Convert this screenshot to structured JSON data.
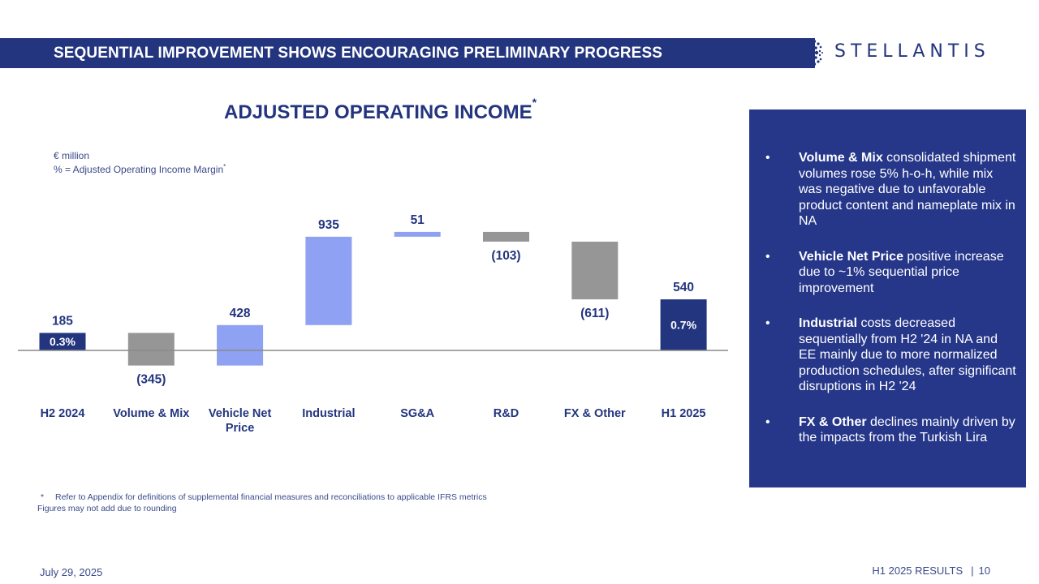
{
  "header": {
    "title": "SEQUENTIAL IMPROVEMENT SHOWS ENCOURAGING PRELIMINARY PROGRESS"
  },
  "logo": {
    "text": "STELLANTIS"
  },
  "colors": {
    "navy": "#23357f",
    "light_blue": "#8ea1f2",
    "gray": "#969696",
    "panel": "#26378a"
  },
  "chart_data": {
    "type": "waterfall",
    "title": "ADJUSTED OPERATING INCOME",
    "title_marker": "*",
    "units_line1": "€ million",
    "units_line2": "% = Adjusted Operating Income Margin",
    "units_marker": "*",
    "categories": [
      "H2 2024",
      "Volume & Mix",
      "Vehicle Net\nPrice",
      "Industrial",
      "SG&A",
      "R&D",
      "FX & Other",
      "H1 2025"
    ],
    "values": [
      185,
      -345,
      428,
      935,
      51,
      -103,
      -611,
      540
    ],
    "bar_kinds": [
      "total",
      "decrease",
      "increase",
      "increase",
      "increase",
      "decrease",
      "decrease",
      "total"
    ],
    "value_labels": [
      "185",
      "(345)",
      "428",
      "935",
      "51",
      "(103)",
      "(611)",
      "540"
    ],
    "margins": {
      "H2 2024": "0.3%",
      "H1 2025": "0.7%"
    },
    "ylim": [
      -250,
      1300
    ]
  },
  "panel": {
    "bullets": [
      {
        "bold": "Volume & Mix",
        "text": " consolidated shipment volumes rose 5% h-o-h, while mix was negative due to unfavorable product content and nameplate mix in NA"
      },
      {
        "bold": "Vehicle Net Price",
        "text": " positive increase due to ~1% sequential price improvement"
      },
      {
        "bold": "Industrial",
        "text": " costs decreased sequentially from H2 '24 in NA and EE mainly due to more normalized production schedules, after significant disruptions in H2 '24"
      },
      {
        "bold": "FX & Other",
        "text": " declines mainly driven by the impacts from the Turkish Lira"
      }
    ],
    "bullet_symbol": "•"
  },
  "footnotes": {
    "marker": "*",
    "line1": "Refer to Appendix for definitions of supplemental financial measures and reconciliations to applicable IFRS metrics",
    "line2": "Figures may not add due to rounding"
  },
  "footer": {
    "date": "July 29, 2025",
    "label": "H1 2025 RESULTS",
    "separator": "|",
    "page": "10"
  }
}
